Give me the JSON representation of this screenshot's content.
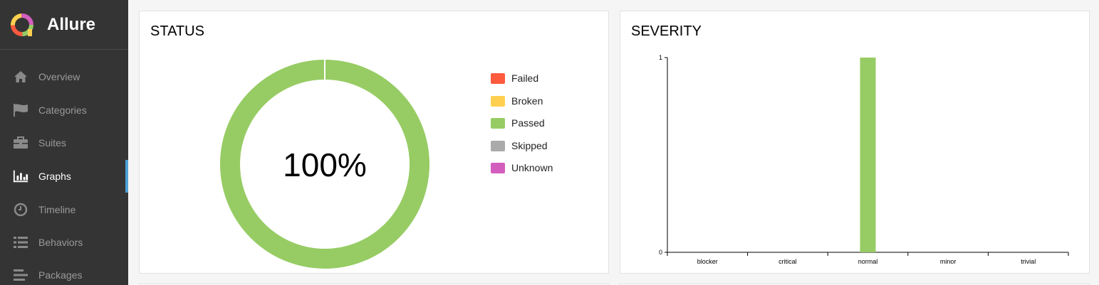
{
  "app": {
    "name": "Allure"
  },
  "sidebar": {
    "items": [
      {
        "label": "Overview",
        "icon": "home-icon",
        "active": false
      },
      {
        "label": "Categories",
        "icon": "flag-icon",
        "active": false
      },
      {
        "label": "Suites",
        "icon": "briefcase-icon",
        "active": false
      },
      {
        "label": "Graphs",
        "icon": "bar-chart-icon",
        "active": true
      },
      {
        "label": "Timeline",
        "icon": "clock-icon",
        "active": false
      },
      {
        "label": "Behaviors",
        "icon": "list-icon",
        "active": false
      },
      {
        "label": "Packages",
        "icon": "align-left-icon",
        "active": false
      }
    ]
  },
  "status": {
    "title": "STATUS",
    "percent_label": "100%",
    "legend": [
      {
        "label": "Failed",
        "color": "#fd5a3e"
      },
      {
        "label": "Broken",
        "color": "#ffd050"
      },
      {
        "label": "Passed",
        "color": "#97cc64"
      },
      {
        "label": "Skipped",
        "color": "#aaaaaa"
      },
      {
        "label": "Unknown",
        "color": "#d35ebe"
      }
    ]
  },
  "severity": {
    "title": "SEVERITY"
  },
  "chart_data": [
    {
      "type": "pie",
      "labels": [
        "Failed",
        "Broken",
        "Passed",
        "Skipped",
        "Unknown"
      ],
      "values": [
        0,
        0,
        1,
        0,
        0
      ],
      "center_label": "100%"
    },
    {
      "type": "bar",
      "categories": [
        "blocker",
        "critical",
        "normal",
        "minor",
        "trivial"
      ],
      "values": [
        0,
        0,
        1,
        0,
        0
      ],
      "ylim": [
        0,
        1
      ],
      "yticks": [
        "0",
        "1"
      ],
      "bar_color": "#97cc64"
    }
  ]
}
